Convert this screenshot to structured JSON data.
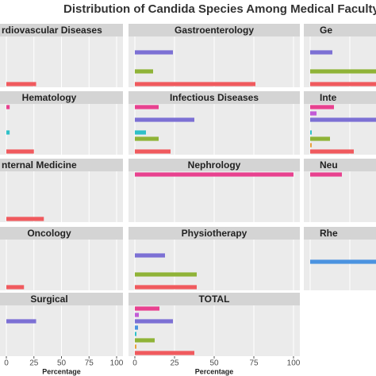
{
  "chart_data": {
    "type": "bar",
    "title": "Distribution of Candida Species Among Medical Faculty Un",
    "x_label": "Percentage",
    "xlim": [
      0,
      100
    ],
    "xticks": [
      0,
      25,
      50,
      75,
      100
    ],
    "grid": true,
    "colors": [
      "#e8418f",
      "#c25bd6",
      "#7c70d4",
      "#4b93e0",
      "#2fc0c8",
      "#8fb337",
      "#e8a13a",
      "#f05a5e"
    ],
    "panels": [
      {
        "title": "rdiovascular Diseases",
        "values": [
          0,
          0,
          0,
          0,
          0,
          0,
          0,
          27
        ]
      },
      {
        "title": "Gastroenterology",
        "values": [
          0,
          0,
          24,
          0,
          0,
          11.5,
          0,
          76
        ]
      },
      {
        "title": "Ge",
        "values": [
          0,
          0,
          14,
          0,
          0,
          45,
          0,
          45
        ]
      },
      {
        "title": "Hematology",
        "values": [
          3,
          0,
          0,
          0,
          3,
          0,
          0,
          25
        ]
      },
      {
        "title": "Infectious Diseases",
        "values": [
          15,
          0,
          37.5,
          0,
          7,
          15,
          0,
          22.5
        ]
      },
      {
        "title": "Inte",
        "values": [
          15,
          4,
          45,
          0,
          1,
          12.5,
          1,
          27.5
        ]
      },
      {
        "title": "nternal Medicine",
        "values": [
          0,
          0,
          0,
          0,
          0,
          0,
          0,
          34
        ]
      },
      {
        "title": "Nephrology",
        "values": [
          100,
          0,
          0,
          0,
          0,
          0,
          0,
          0
        ]
      },
      {
        "title": "Neu",
        "values": [
          20,
          0,
          0,
          0,
          0,
          0,
          0,
          0
        ]
      },
      {
        "title": "Oncology",
        "values": [
          0,
          0,
          0,
          0,
          0,
          0,
          0,
          16
        ]
      },
      {
        "title": "Physiotherapy",
        "values": [
          0,
          0,
          19,
          0,
          0,
          39,
          0,
          39
        ]
      },
      {
        "title": "Rhe",
        "values": [
          0,
          0,
          0,
          45,
          0,
          0,
          0,
          0
        ]
      },
      {
        "title": "Surgical",
        "values": [
          0,
          0,
          27,
          0,
          0,
          0,
          0,
          0
        ]
      },
      {
        "title": "TOTAL",
        "values": [
          15.5,
          2.5,
          24,
          2,
          1,
          12.5,
          1,
          37.5
        ]
      }
    ]
  }
}
